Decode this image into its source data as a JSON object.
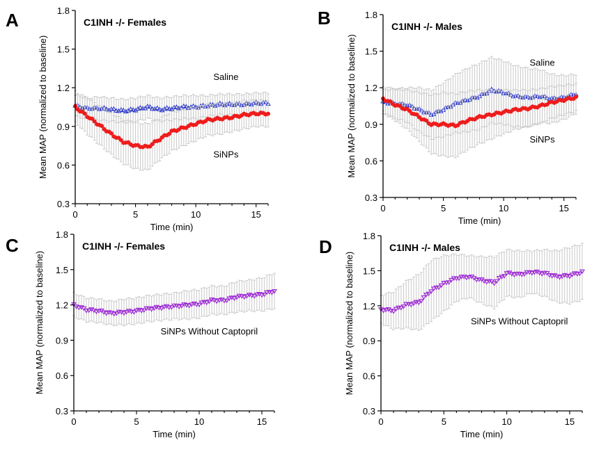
{
  "chart_data": [
    {
      "panel": "A",
      "type": "scatter",
      "title": "C1INH -/- Females",
      "xlabel": "Time (min)",
      "ylabel": "Mean MAP (normalized to baseline)",
      "xlim": [
        0,
        16
      ],
      "ylim": [
        0.3,
        1.8
      ],
      "xticks": [
        0,
        5,
        10,
        15
      ],
      "yticks": [
        0.3,
        0.6,
        0.9,
        1.2,
        1.5,
        1.8
      ],
      "annotations": [
        {
          "text": "Saline",
          "x": 12.5,
          "y": 1.26
        },
        {
          "text": "SiNPs",
          "x": 12.5,
          "y": 0.66
        }
      ],
      "series": [
        {
          "name": "Saline",
          "color": "#2a36c8",
          "marker": "triangle-up",
          "x": [
            0,
            1,
            2,
            3,
            4,
            5,
            6,
            7,
            8,
            9,
            10,
            11,
            12,
            13,
            14,
            15,
            16
          ],
          "y": [
            1.06,
            1.04,
            1.04,
            1.03,
            1.02,
            1.03,
            1.05,
            1.03,
            1.04,
            1.05,
            1.05,
            1.06,
            1.07,
            1.07,
            1.07,
            1.08,
            1.08
          ],
          "err": [
            0.08,
            0.08,
            0.09,
            0.09,
            0.09,
            0.09,
            0.09,
            0.09,
            0.09,
            0.09,
            0.09,
            0.08,
            0.08,
            0.08,
            0.08,
            0.08,
            0.08
          ]
        },
        {
          "name": "SiNPs",
          "color": "#ee1c1c",
          "marker": "circle",
          "x": [
            0,
            1,
            2,
            3,
            4,
            5,
            6,
            7,
            8,
            9,
            10,
            11,
            12,
            13,
            14,
            15,
            16
          ],
          "y": [
            1.05,
            0.98,
            0.91,
            0.84,
            0.78,
            0.75,
            0.74,
            0.8,
            0.86,
            0.89,
            0.92,
            0.95,
            0.96,
            0.97,
            0.99,
            1.0,
            1.0
          ],
          "err": [
            0.12,
            0.14,
            0.15,
            0.16,
            0.17,
            0.18,
            0.18,
            0.16,
            0.15,
            0.14,
            0.13,
            0.12,
            0.12,
            0.11,
            0.11,
            0.1,
            0.1
          ]
        }
      ]
    },
    {
      "panel": "B",
      "type": "scatter",
      "title": "C1INH -/- Males",
      "xlabel": "Time (min)",
      "ylabel": "Mean MAP (normalized to baseline)",
      "xlim": [
        0,
        16
      ],
      "ylim": [
        0.3,
        1.8
      ],
      "xticks": [
        0,
        5,
        10,
        15
      ],
      "yticks": [
        0.3,
        0.6,
        0.9,
        1.2,
        1.5,
        1.8
      ],
      "annotations": [
        {
          "text": "Saline",
          "x": 13.2,
          "y": 1.38
        },
        {
          "text": "SiNPs",
          "x": 13.2,
          "y": 0.75
        }
      ],
      "series": [
        {
          "name": "Saline",
          "color": "#2a36c8",
          "marker": "triangle-up",
          "x": [
            0,
            1,
            2,
            3,
            4,
            5,
            6,
            7,
            8,
            9,
            10,
            11,
            12,
            13,
            14,
            15,
            16
          ],
          "y": [
            1.08,
            1.07,
            1.06,
            1.02,
            0.98,
            1.02,
            1.07,
            1.1,
            1.13,
            1.18,
            1.16,
            1.13,
            1.12,
            1.13,
            1.11,
            1.12,
            1.15
          ],
          "err": [
            0.1,
            0.12,
            0.14,
            0.18,
            0.2,
            0.22,
            0.24,
            0.26,
            0.27,
            0.27,
            0.26,
            0.25,
            0.24,
            0.22,
            0.2,
            0.18,
            0.16
          ]
        },
        {
          "name": "SiNPs",
          "color": "#ee1c1c",
          "marker": "circle",
          "x": [
            0,
            1,
            2,
            3,
            4,
            5,
            6,
            7,
            8,
            9,
            10,
            11,
            12,
            13,
            14,
            15,
            16
          ],
          "y": [
            1.11,
            1.06,
            1.02,
            0.96,
            0.9,
            0.9,
            0.89,
            0.93,
            0.96,
            0.98,
            1.0,
            1.02,
            1.03,
            1.05,
            1.08,
            1.1,
            1.12
          ],
          "err": [
            0.1,
            0.13,
            0.16,
            0.2,
            0.24,
            0.26,
            0.26,
            0.24,
            0.22,
            0.2,
            0.18,
            0.16,
            0.15,
            0.14,
            0.13,
            0.12,
            0.11
          ]
        }
      ]
    },
    {
      "panel": "C",
      "type": "scatter",
      "title": "C1INH -/- Females",
      "xlabel": "Time (min)",
      "ylabel": "Mean MAP (normalized to baseline)",
      "xlim": [
        0,
        16
      ],
      "ylim": [
        0.3,
        1.8
      ],
      "xticks": [
        0,
        5,
        10,
        15
      ],
      "yticks": [
        0.3,
        0.6,
        0.9,
        1.2,
        1.5,
        1.8
      ],
      "annotations": [
        {
          "text": "SiNPs Without Captopril",
          "x": 10.8,
          "y": 0.95
        }
      ],
      "series": [
        {
          "name": "SiNPs Without Captopril",
          "color": "#9b22d6",
          "marker": "triangle-down",
          "x": [
            0,
            1,
            2,
            3,
            4,
            5,
            6,
            7,
            8,
            9,
            10,
            11,
            12,
            13,
            14,
            15,
            16
          ],
          "y": [
            1.2,
            1.16,
            1.15,
            1.13,
            1.14,
            1.15,
            1.17,
            1.18,
            1.19,
            1.2,
            1.21,
            1.24,
            1.24,
            1.27,
            1.28,
            1.29,
            1.32
          ],
          "err": [
            0.1,
            0.1,
            0.1,
            0.1,
            0.11,
            0.11,
            0.11,
            0.11,
            0.11,
            0.12,
            0.12,
            0.12,
            0.12,
            0.13,
            0.13,
            0.14,
            0.15
          ]
        }
      ]
    },
    {
      "panel": "D",
      "type": "scatter",
      "title": "C1INH -/- Males",
      "xlabel": "Time (min)",
      "ylabel": "Mean MAP (normalized to baseline)",
      "xlim": [
        0,
        16
      ],
      "ylim": [
        0.3,
        1.8
      ],
      "xticks": [
        0,
        5,
        10,
        15
      ],
      "yticks": [
        0.3,
        0.6,
        0.9,
        1.2,
        1.5,
        1.8
      ],
      "annotations": [
        {
          "text": "SiNPs Without Captopril",
          "x": 11.0,
          "y": 1.04
        }
      ],
      "series": [
        {
          "name": "SiNPs Without Captopril",
          "color": "#9b22d6",
          "marker": "triangle-down",
          "x": [
            0,
            1,
            2,
            3,
            4,
            5,
            6,
            7,
            8,
            9,
            10,
            11,
            12,
            13,
            14,
            15,
            16
          ],
          "y": [
            1.17,
            1.16,
            1.21,
            1.23,
            1.33,
            1.39,
            1.44,
            1.45,
            1.42,
            1.4,
            1.48,
            1.47,
            1.49,
            1.48,
            1.45,
            1.46,
            1.49
          ],
          "err": [
            0.12,
            0.16,
            0.2,
            0.24,
            0.26,
            0.24,
            0.2,
            0.18,
            0.2,
            0.22,
            0.2,
            0.2,
            0.18,
            0.2,
            0.22,
            0.24,
            0.24
          ]
        }
      ]
    }
  ]
}
